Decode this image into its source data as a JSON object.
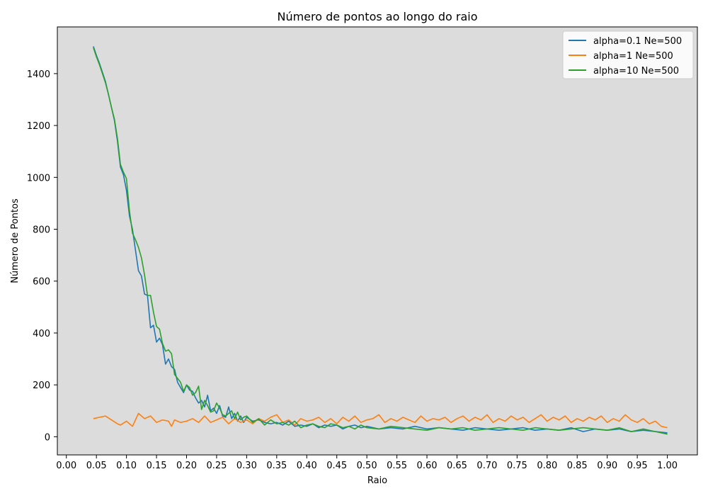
{
  "chart_data": {
    "type": "line",
    "title": "Número de pontos ao longo do raio",
    "xlabel": "Raio",
    "ylabel": "Número de Pontos",
    "xlim": [
      -0.015,
      1.05
    ],
    "ylim": [
      -70,
      1580
    ],
    "xticks": [
      "0.00",
      "0.05",
      "0.10",
      "0.15",
      "0.20",
      "0.25",
      "0.30",
      "0.35",
      "0.40",
      "0.45",
      "0.50",
      "0.55",
      "0.60",
      "0.65",
      "0.70",
      "0.75",
      "0.80",
      "0.85",
      "0.90",
      "0.95",
      "1.00"
    ],
    "yticks": [
      "0",
      "200",
      "400",
      "600",
      "800",
      "1000",
      "1200",
      "1400"
    ],
    "grid": false,
    "background": "#dcdcdc",
    "legend_position": "top-right",
    "series": [
      {
        "name": "alpha=0.1 Ne=500",
        "color": "#1f77b4",
        "x": [
          0.045,
          0.05,
          0.055,
          0.06,
          0.065,
          0.07,
          0.075,
          0.08,
          0.085,
          0.09,
          0.095,
          0.1,
          0.105,
          0.11,
          0.115,
          0.12,
          0.125,
          0.13,
          0.135,
          0.14,
          0.145,
          0.15,
          0.155,
          0.16,
          0.165,
          0.17,
          0.175,
          0.18,
          0.185,
          0.19,
          0.195,
          0.2,
          0.205,
          0.21,
          0.215,
          0.22,
          0.225,
          0.23,
          0.235,
          0.24,
          0.245,
          0.25,
          0.255,
          0.26,
          0.265,
          0.27,
          0.275,
          0.28,
          0.285,
          0.29,
          0.295,
          0.3,
          0.31,
          0.32,
          0.33,
          0.34,
          0.35,
          0.36,
          0.37,
          0.38,
          0.39,
          0.4,
          0.41,
          0.42,
          0.43,
          0.44,
          0.45,
          0.46,
          0.47,
          0.48,
          0.49,
          0.5,
          0.52,
          0.54,
          0.56,
          0.58,
          0.6,
          0.62,
          0.64,
          0.66,
          0.68,
          0.7,
          0.72,
          0.74,
          0.76,
          0.78,
          0.8,
          0.82,
          0.84,
          0.86,
          0.88,
          0.9,
          0.92,
          0.94,
          0.96,
          0.98,
          1.0
        ],
        "y": [
          1505,
          1470,
          1440,
          1405,
          1370,
          1320,
          1270,
          1220,
          1140,
          1040,
          1010,
          950,
          850,
          800,
          720,
          640,
          620,
          550,
          545,
          420,
          430,
          365,
          380,
          355,
          280,
          300,
          270,
          260,
          210,
          190,
          170,
          200,
          180,
          175,
          150,
          130,
          140,
          115,
          160,
          100,
          110,
          90,
          120,
          80,
          75,
          115,
          70,
          90,
          60,
          80,
          55,
          75,
          60,
          65,
          55,
          50,
          55,
          45,
          60,
          40,
          45,
          40,
          50,
          35,
          45,
          40,
          45,
          30,
          40,
          45,
          35,
          40,
          30,
          35,
          30,
          40,
          30,
          35,
          30,
          25,
          35,
          30,
          25,
          30,
          35,
          25,
          30,
          25,
          35,
          20,
          30,
          25,
          30,
          20,
          25,
          20,
          15
        ]
      },
      {
        "name": "alpha=1 Ne=500",
        "color": "#ff7f0e",
        "x": [
          0.045,
          0.055,
          0.065,
          0.075,
          0.085,
          0.09,
          0.1,
          0.11,
          0.12,
          0.13,
          0.14,
          0.15,
          0.16,
          0.17,
          0.175,
          0.18,
          0.19,
          0.2,
          0.21,
          0.22,
          0.23,
          0.24,
          0.25,
          0.26,
          0.27,
          0.28,
          0.29,
          0.3,
          0.31,
          0.32,
          0.33,
          0.34,
          0.35,
          0.36,
          0.37,
          0.38,
          0.39,
          0.4,
          0.41,
          0.42,
          0.43,
          0.44,
          0.45,
          0.46,
          0.47,
          0.48,
          0.49,
          0.5,
          0.51,
          0.52,
          0.53,
          0.54,
          0.55,
          0.56,
          0.57,
          0.58,
          0.59,
          0.6,
          0.61,
          0.62,
          0.63,
          0.64,
          0.65,
          0.66,
          0.67,
          0.68,
          0.69,
          0.7,
          0.71,
          0.72,
          0.73,
          0.74,
          0.75,
          0.76,
          0.77,
          0.78,
          0.79,
          0.8,
          0.81,
          0.82,
          0.83,
          0.84,
          0.85,
          0.86,
          0.87,
          0.88,
          0.89,
          0.9,
          0.91,
          0.92,
          0.93,
          0.94,
          0.95,
          0.96,
          0.97,
          0.98,
          0.99,
          1.0
        ],
        "y": [
          70,
          75,
          80,
          65,
          50,
          45,
          60,
          40,
          90,
          70,
          80,
          55,
          65,
          60,
          40,
          65,
          55,
          60,
          70,
          55,
          80,
          55,
          65,
          75,
          50,
          70,
          55,
          65,
          50,
          70,
          60,
          75,
          85,
          55,
          65,
          45,
          70,
          60,
          65,
          75,
          55,
          70,
          50,
          75,
          60,
          80,
          55,
          65,
          70,
          85,
          55,
          70,
          60,
          75,
          65,
          55,
          80,
          60,
          70,
          65,
          75,
          55,
          70,
          80,
          60,
          75,
          65,
          85,
          55,
          70,
          60,
          80,
          65,
          75,
          55,
          70,
          85,
          60,
          75,
          65,
          80,
          55,
          70,
          60,
          75,
          65,
          80,
          55,
          70,
          60,
          85,
          65,
          55,
          70,
          50,
          60,
          40,
          35
        ]
      },
      {
        "name": "alpha=10 Ne=500",
        "color": "#2ca02c",
        "x": [
          0.045,
          0.05,
          0.055,
          0.06,
          0.065,
          0.07,
          0.075,
          0.08,
          0.085,
          0.09,
          0.095,
          0.1,
          0.105,
          0.11,
          0.115,
          0.12,
          0.125,
          0.13,
          0.135,
          0.14,
          0.145,
          0.15,
          0.155,
          0.16,
          0.165,
          0.17,
          0.175,
          0.18,
          0.185,
          0.19,
          0.195,
          0.2,
          0.205,
          0.21,
          0.215,
          0.22,
          0.225,
          0.23,
          0.235,
          0.24,
          0.245,
          0.25,
          0.255,
          0.26,
          0.265,
          0.27,
          0.275,
          0.28,
          0.285,
          0.29,
          0.295,
          0.3,
          0.31,
          0.32,
          0.33,
          0.34,
          0.35,
          0.36,
          0.37,
          0.38,
          0.39,
          0.4,
          0.41,
          0.42,
          0.43,
          0.44,
          0.45,
          0.46,
          0.47,
          0.48,
          0.49,
          0.5,
          0.52,
          0.54,
          0.56,
          0.58,
          0.6,
          0.62,
          0.64,
          0.66,
          0.68,
          0.7,
          0.72,
          0.74,
          0.76,
          0.78,
          0.8,
          0.82,
          0.84,
          0.86,
          0.88,
          0.9,
          0.92,
          0.94,
          0.96,
          0.98,
          1.0
        ],
        "y": [
          1500,
          1465,
          1435,
          1400,
          1365,
          1320,
          1270,
          1225,
          1150,
          1050,
          1020,
          995,
          870,
          785,
          760,
          730,
          690,
          625,
          545,
          545,
          480,
          425,
          415,
          360,
          330,
          335,
          320,
          240,
          225,
          210,
          175,
          200,
          190,
          160,
          170,
          195,
          105,
          140,
          120,
          95,
          100,
          130,
          110,
          85,
          80,
          90,
          100,
          70,
          95,
          65,
          75,
          80,
          55,
          70,
          45,
          65,
          50,
          55,
          45,
          60,
          35,
          45,
          50,
          40,
          35,
          50,
          45,
          35,
          40,
          30,
          45,
          35,
          30,
          40,
          35,
          30,
          25,
          35,
          30,
          35,
          25,
          30,
          35,
          30,
          25,
          35,
          30,
          25,
          30,
          35,
          30,
          25,
          35,
          20,
          30,
          20,
          10
        ]
      }
    ]
  }
}
